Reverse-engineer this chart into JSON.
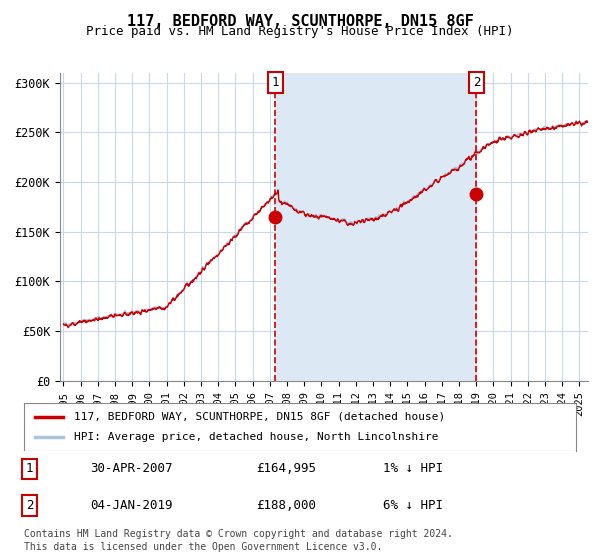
{
  "title": "117, BEDFORD WAY, SCUNTHORPE, DN15 8GF",
  "subtitle": "Price paid vs. HM Land Registry's House Price Index (HPI)",
  "xlabel": "",
  "ylabel": "",
  "background_color": "#ffffff",
  "plot_bg_color": "#ffffff",
  "shade_color": "#dce9f5",
  "grid_color": "#c8d8e8",
  "hpi_color": "#aac4e0",
  "price_color": "#cc0000",
  "dashed_line_color": "#cc0000",
  "marker_color": "#cc0000",
  "ylim": [
    0,
    310000
  ],
  "yticks": [
    0,
    50000,
    100000,
    150000,
    200000,
    250000,
    300000
  ],
  "ytick_labels": [
    "£0",
    "£50K",
    "£100K",
    "£150K",
    "£200K",
    "£250K",
    "£300K"
  ],
  "xtick_years": [
    1995,
    1996,
    1997,
    1998,
    1999,
    2000,
    2001,
    2002,
    2003,
    2004,
    2005,
    2006,
    2007,
    2008,
    2009,
    2010,
    2011,
    2012,
    2013,
    2014,
    2015,
    2016,
    2017,
    2018,
    2019,
    2020,
    2021,
    2022,
    2023,
    2024,
    2025
  ],
  "sale1_date": 2007.33,
  "sale1_price": 164995,
  "sale1_label": "1",
  "sale2_date": 2019.01,
  "sale2_price": 188000,
  "sale2_label": "2",
  "shade_start": 2007.33,
  "shade_end": 2019.01,
  "legend_label1": "117, BEDFORD WAY, SCUNTHORPE, DN15 8GF (detached house)",
  "legend_label2": "HPI: Average price, detached house, North Lincolnshire",
  "footnote1": "Contains HM Land Registry data © Crown copyright and database right 2024.",
  "footnote2": "This data is licensed under the Open Government Licence v3.0.",
  "table_rows": [
    {
      "num": "1",
      "date": "30-APR-2007",
      "price": "£164,995",
      "hpi": "1% ↓ HPI"
    },
    {
      "num": "2",
      "date": "04-JAN-2019",
      "price": "£188,000",
      "hpi": "6% ↓ HPI"
    }
  ]
}
